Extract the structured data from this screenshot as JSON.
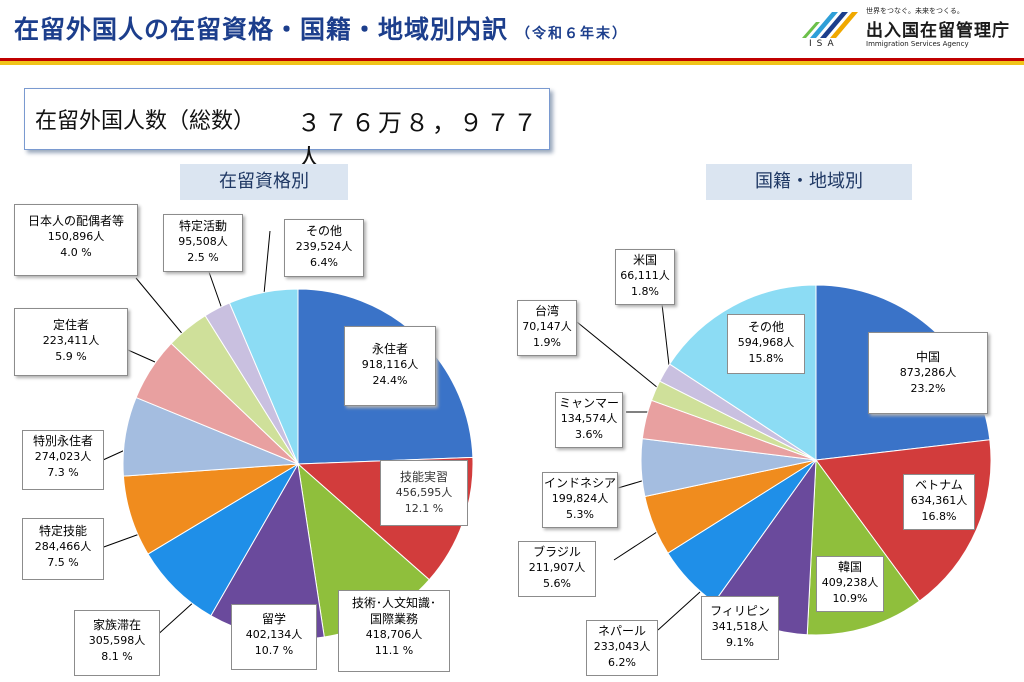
{
  "header": {
    "title": "在留外国人の在留資格・国籍・地域別内訳",
    "subtitle": "（令和６年末）",
    "logo_tagline": "世界をつなぐ。未来をつくる。",
    "logo_name": "出入国在留管理庁",
    "logo_en": "Immigration Services Agency",
    "logo_isa": "ISA",
    "logo_icon": "isa-logo-icon"
  },
  "total": {
    "label": "在留外国人数（総数）",
    "value": "３７６万８，９７７人"
  },
  "sections": {
    "left_title": "在留資格別",
    "right_title": "国籍・地域別"
  },
  "chart_data": [
    {
      "type": "pie",
      "title": "在留資格別",
      "slices": [
        {
          "name": "永住者",
          "count": "918,116人",
          "value": 24.4,
          "pct": "24.4%",
          "color": "#3a73c8"
        },
        {
          "name": "技能実習",
          "count": "456,595人",
          "value": 12.1,
          "pct": "12.1 %",
          "color": "#d23c3c"
        },
        {
          "name": "技術･人文知識･国際業務",
          "name_line1": "技術･人文知識･",
          "name_line2": "国際業務",
          "count": "418,706人",
          "value": 11.1,
          "pct": "11.1 %",
          "color": "#8fbf3c"
        },
        {
          "name": "留学",
          "count": "402,134人",
          "value": 10.7,
          "pct": "10.7 %",
          "color": "#6a4a9c"
        },
        {
          "name": "家族滞在",
          "count": "305,598人",
          "value": 8.1,
          "pct": "8.1 %",
          "color": "#1f8fe8"
        },
        {
          "name": "特定技能",
          "count": "284,466人",
          "value": 7.5,
          "pct": "7.5 %",
          "color": "#f08c1e"
        },
        {
          "name": "特別永住者",
          "count": "274,023人",
          "value": 7.3,
          "pct": "7.3 %",
          "color": "#a4bde0"
        },
        {
          "name": "定住者",
          "count": "223,411人",
          "value": 5.9,
          "pct": "5.9 %",
          "color": "#e8a0a0"
        },
        {
          "name": "日本人の配偶者等",
          "count": "150,896人",
          "value": 4.0,
          "pct": "4.0 %",
          "color": "#cfe09a"
        },
        {
          "name": "特定活動",
          "count": "95,508人",
          "value": 2.5,
          "pct": "2.5 %",
          "color": "#c9c0e0"
        },
        {
          "name": "その他",
          "count": "239,524人",
          "value": 6.4,
          "pct": "6.4%",
          "color": "#8cdcf4"
        }
      ]
    },
    {
      "type": "pie",
      "title": "国籍・地域別",
      "slices": [
        {
          "name": "中国",
          "count": "873,286人",
          "value": 23.2,
          "pct": "23.2%",
          "color": "#3a73c8"
        },
        {
          "name": "ベトナム",
          "count": "634,361人",
          "value": 16.8,
          "pct": "16.8%",
          "color": "#d23c3c"
        },
        {
          "name": "韓国",
          "count": "409,238人",
          "value": 10.9,
          "pct": "10.9%",
          "color": "#8fbf3c"
        },
        {
          "name": "フィリピン",
          "count": "341,518人",
          "value": 9.1,
          "pct": "9.1%",
          "color": "#6a4a9c"
        },
        {
          "name": "ネパール",
          "count": "233,043人",
          "value": 6.2,
          "pct": "6.2%",
          "color": "#1f8fe8"
        },
        {
          "name": "ブラジル",
          "count": "211,907人",
          "value": 5.6,
          "pct": "5.6%",
          "color": "#f08c1e"
        },
        {
          "name": "インドネシア",
          "count": "199,824人",
          "value": 5.3,
          "pct": "5.3%",
          "color": "#a4bde0"
        },
        {
          "name": "ミャンマー",
          "count": "134,574人",
          "value": 3.6,
          "pct": "3.6%",
          "color": "#e8a0a0"
        },
        {
          "name": "台湾",
          "count": "70,147人",
          "value": 1.9,
          "pct": "1.9%",
          "color": "#cfe09a"
        },
        {
          "name": "米国",
          "count": "66,111人",
          "value": 1.8,
          "pct": "1.8%",
          "color": "#c9c0e0"
        },
        {
          "name": "その他",
          "count": "594,968人",
          "value": 15.8,
          "pct": "15.8%",
          "color": "#8cdcf4"
        }
      ]
    }
  ]
}
